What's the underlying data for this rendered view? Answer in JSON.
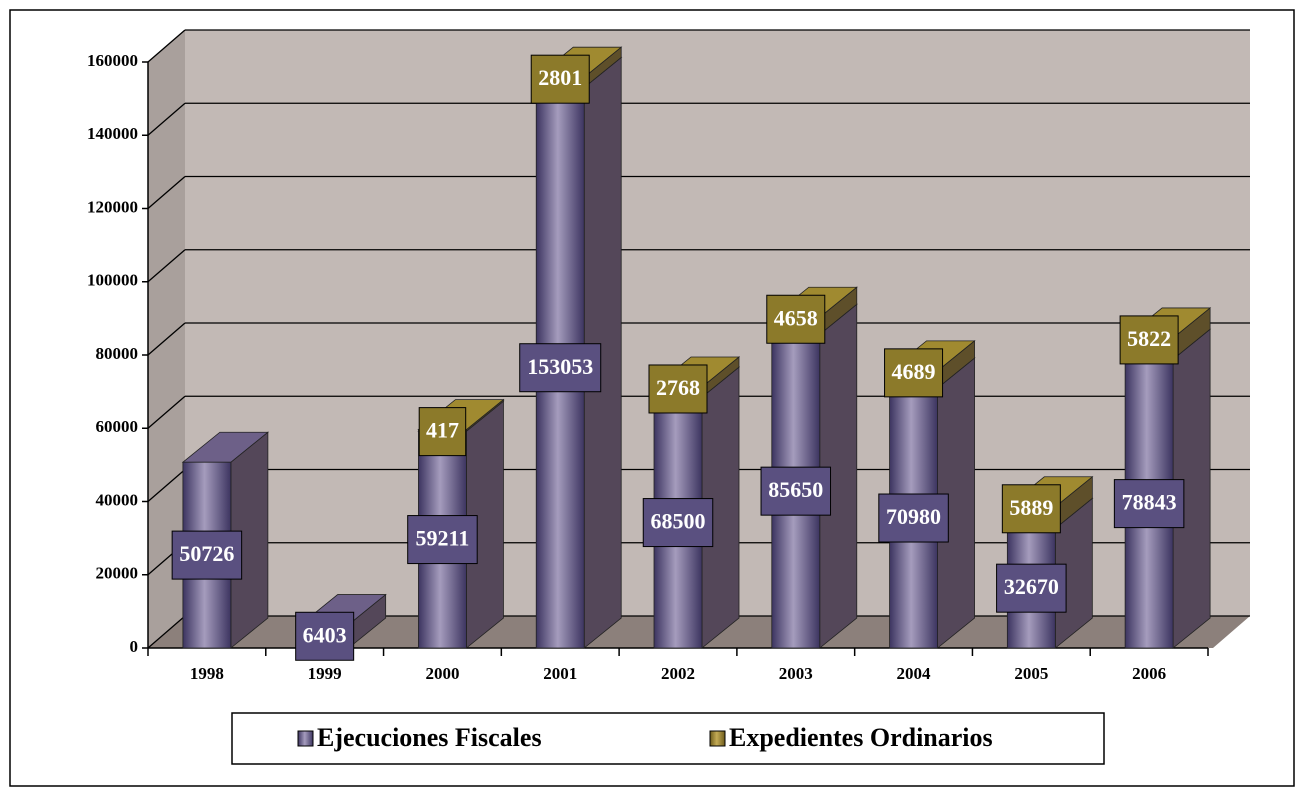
{
  "chart_data": {
    "type": "bar3d_stacked",
    "categories": [
      "1998",
      "1999",
      "2000",
      "2001",
      "2002",
      "2003",
      "2004",
      "2005",
      "2006"
    ],
    "series": [
      {
        "name": "Ejecuciones Fiscales",
        "color": "#5a5080",
        "values": [
          50726,
          6403,
          59211,
          153053,
          68500,
          85650,
          70980,
          32670,
          78843
        ]
      },
      {
        "name": "Expedientes Ordinarios",
        "color": "#8c7a2a",
        "values": [
          null,
          null,
          417,
          2801,
          2768,
          4658,
          4689,
          5889,
          5822
        ]
      }
    ],
    "ylim": [
      0,
      160000
    ],
    "yticks": [
      0,
      20000,
      40000,
      60000,
      80000,
      100000,
      120000,
      140000,
      160000
    ],
    "grid": true,
    "legend": "bottom"
  }
}
